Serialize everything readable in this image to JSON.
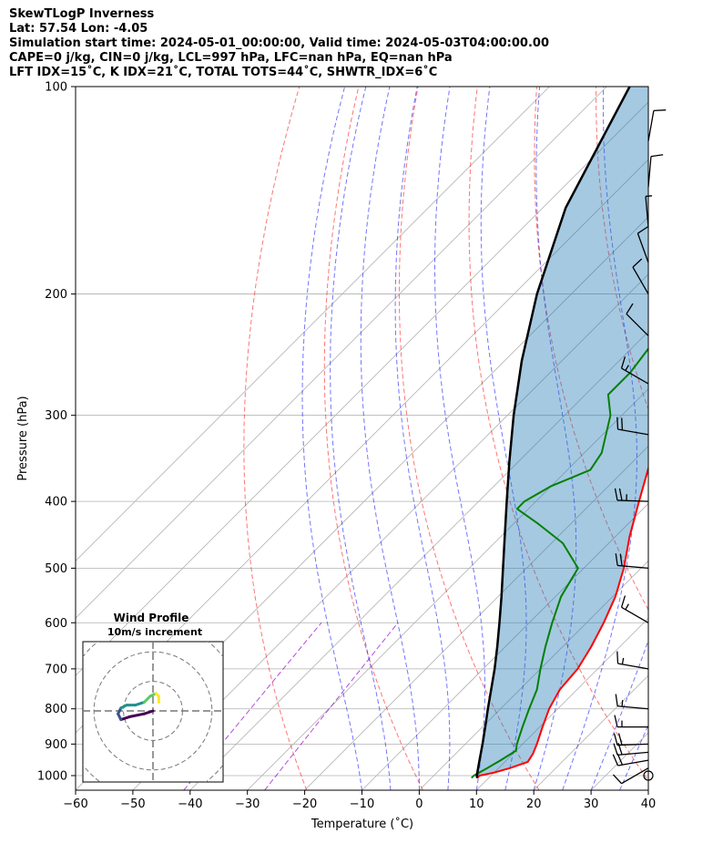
{
  "header": {
    "line1": "SkewTLogP Inverness",
    "line2": "Lat: 57.54   Lon: -4.05",
    "line3": "Simulation start time: 2024-05-01_00:00:00, Valid time: 2024-05-03T04:00:00.00",
    "line4": "CAPE=0 j/kg, CIN=0 j/kg, LCL=997 hPa, LFC=nan hPa, EQ=nan hPa",
    "line5": "LFT IDX=15˚C, K IDX=21˚C, TOTAL TOTS=44˚C, SHWTR_IDX=6˚C"
  },
  "hodograph": {
    "title": "Wind Profile",
    "subtitle": "10m/s increment",
    "colors": [
      "#440154",
      "#3b528b",
      "#21918c",
      "#5ec962",
      "#fde725"
    ],
    "trace": [
      [
        0,
        0
      ],
      [
        -3,
        -1
      ],
      [
        -8,
        -2
      ],
      [
        -11,
        -3
      ],
      [
        -12,
        -1
      ],
      [
        -11,
        1
      ],
      [
        -9,
        2
      ],
      [
        -6,
        2
      ],
      [
        -3,
        3
      ],
      [
        -1,
        5
      ],
      [
        1,
        6
      ],
      [
        2,
        5
      ],
      [
        2,
        3
      ]
    ]
  },
  "chart_data": {
    "type": "line",
    "title": "",
    "xlabel": "Temperature (˚C)",
    "ylabel": "Pressure (hPa)",
    "xlim": [
      -60,
      40
    ],
    "ylim": [
      1050,
      100
    ],
    "y_scale": "log",
    "skew": "45-degree skewed isotherms",
    "xticks": [
      "−60",
      "−50",
      "−40",
      "−30",
      "−20",
      "−10",
      "0",
      "10",
      "20",
      "30",
      "40"
    ],
    "xtick_values": [
      -60,
      -50,
      -40,
      -30,
      -20,
      -10,
      0,
      10,
      20,
      30,
      40
    ],
    "yticks": [
      "100",
      "200",
      "300",
      "400",
      "500",
      "600",
      "700",
      "800",
      "900",
      "1000"
    ],
    "ytick_values": [
      100,
      200,
      300,
      400,
      500,
      600,
      700,
      800,
      900,
      1000
    ],
    "grid": true,
    "series": [
      {
        "name": "",
        "kind": "temperature",
        "color": "#ff0000",
        "points": [
          [
            1008,
            8
          ],
          [
            1000,
            8
          ],
          [
            990,
            10
          ],
          [
            975,
            12
          ],
          [
            955,
            14
          ],
          [
            930,
            13.5
          ],
          [
            900,
            12.5
          ],
          [
            850,
            10.5
          ],
          [
            800,
            8.5
          ],
          [
            750,
            7
          ],
          [
            700,
            6.5
          ],
          [
            650,
            5
          ],
          [
            600,
            3
          ],
          [
            550,
            0.5
          ],
          [
            500,
            -3
          ],
          [
            450,
            -7.5
          ],
          [
            400,
            -12
          ],
          [
            350,
            -17
          ],
          [
            300,
            -21
          ],
          [
            250,
            -25.5
          ],
          [
            225,
            -27.5
          ],
          [
            210,
            -27.5
          ],
          [
            200,
            -27
          ],
          [
            180,
            -29
          ],
          [
            160,
            -30
          ],
          [
            150,
            -30
          ],
          [
            140,
            -30
          ],
          [
            130,
            -30
          ],
          [
            120,
            -31
          ],
          [
            110,
            -32
          ],
          [
            100,
            -33
          ]
        ]
      },
      {
        "name": "",
        "kind": "dewpoint",
        "color": "#008000",
        "points": [
          [
            1008,
            7
          ],
          [
            1000,
            7
          ],
          [
            975,
            8
          ],
          [
            950,
            9
          ],
          [
            920,
            10
          ],
          [
            900,
            9
          ],
          [
            850,
            7
          ],
          [
            800,
            5
          ],
          [
            750,
            3
          ],
          [
            700,
            0
          ],
          [
            650,
            -3
          ],
          [
            600,
            -6
          ],
          [
            550,
            -9
          ],
          [
            500,
            -11
          ],
          [
            460,
            -18
          ],
          [
            430,
            -26
          ],
          [
            410,
            -32
          ],
          [
            400,
            -32
          ],
          [
            380,
            -30
          ],
          [
            360,
            -26
          ],
          [
            340,
            -27
          ],
          [
            300,
            -32
          ],
          [
            280,
            -36
          ],
          [
            260,
            -36
          ],
          [
            240,
            -37
          ],
          [
            220,
            -39
          ],
          [
            200,
            -40
          ],
          [
            190,
            -44
          ],
          [
            180,
            -48
          ],
          [
            170,
            -54
          ],
          [
            160,
            -56
          ],
          [
            150,
            -55
          ],
          [
            140,
            -52
          ],
          [
            130,
            -49
          ],
          [
            120,
            -46
          ],
          [
            110,
            -44
          ],
          [
            100,
            -43
          ]
        ]
      },
      {
        "name": "",
        "kind": "parcel",
        "color": "#000000",
        "points": [
          [
            1008,
            8
          ],
          [
            1000,
            7.5
          ],
          [
            950,
            5.3
          ],
          [
            900,
            3
          ],
          [
            850,
            0.5
          ],
          [
            800,
            -2.2
          ],
          [
            750,
            -5
          ],
          [
            700,
            -8
          ],
          [
            650,
            -11.4
          ],
          [
            600,
            -15.2
          ],
          [
            550,
            -19.4
          ],
          [
            500,
            -24.1
          ],
          [
            450,
            -29.3
          ],
          [
            400,
            -35.1
          ],
          [
            350,
            -41.6
          ],
          [
            300,
            -48.9
          ],
          [
            250,
            -57
          ],
          [
            200,
            -66
          ],
          [
            150,
            -76
          ],
          [
            100,
            -86
          ]
        ]
      }
    ],
    "reference_lines": {
      "dry_adiabats_theta_K": [
        250,
        270,
        290,
        310,
        330,
        350,
        370,
        390,
        410,
        430,
        450
      ],
      "dry_adiabat_color": "#ff0000",
      "moist_adiabats_start_C": [
        -10,
        -5,
        0,
        5,
        10,
        15,
        20,
        25,
        30,
        35,
        40
      ],
      "moist_adiabat_color": "#0000ff",
      "mixing_ratio_color": "#9400d3"
    },
    "wind_barbs": [
      {
        "p": 1000,
        "speed_kt": 0,
        "dir_deg": 0
      },
      {
        "p": 975,
        "speed_kt": 12,
        "dir_deg": 240
      },
      {
        "p": 950,
        "speed_kt": 20,
        "dir_deg": 260
      },
      {
        "p": 925,
        "speed_kt": 20,
        "dir_deg": 265
      },
      {
        "p": 900,
        "speed_kt": 20,
        "dir_deg": 268
      },
      {
        "p": 850,
        "speed_kt": 18,
        "dir_deg": 270
      },
      {
        "p": 800,
        "speed_kt": 18,
        "dir_deg": 275
      },
      {
        "p": 700,
        "speed_kt": 15,
        "dir_deg": 280
      },
      {
        "p": 600,
        "speed_kt": 15,
        "dir_deg": 300
      },
      {
        "p": 500,
        "speed_kt": 20,
        "dir_deg": 275
      },
      {
        "p": 400,
        "speed_kt": 25,
        "dir_deg": 272
      },
      {
        "p": 320,
        "speed_kt": 20,
        "dir_deg": 280
      },
      {
        "p": 270,
        "speed_kt": 15,
        "dir_deg": 300
      },
      {
        "p": 230,
        "speed_kt": 10,
        "dir_deg": 315
      },
      {
        "p": 200,
        "speed_kt": 10,
        "dir_deg": 330
      },
      {
        "p": 180,
        "speed_kt": 10,
        "dir_deg": 340
      },
      {
        "p": 160,
        "speed_kt": 5,
        "dir_deg": 355
      },
      {
        "p": 140,
        "speed_kt": 10,
        "dir_deg": 5
      },
      {
        "p": 120,
        "speed_kt": 10,
        "dir_deg": 10
      }
    ]
  }
}
